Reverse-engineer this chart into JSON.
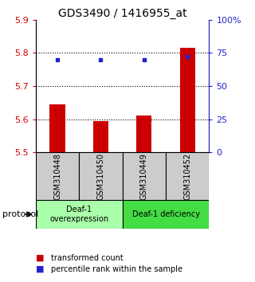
{
  "title": "GDS3490 / 1416955_at",
  "samples": [
    "GSM310448",
    "GSM310450",
    "GSM310449",
    "GSM310452"
  ],
  "bar_values": [
    5.645,
    5.595,
    5.61,
    5.815
  ],
  "bar_base": 5.5,
  "dot_percentiles": [
    70,
    70,
    70,
    72
  ],
  "ylim": [
    5.5,
    5.9
  ],
  "yticks_left": [
    5.5,
    5.6,
    5.7,
    5.8,
    5.9
  ],
  "yticks_right": [
    0,
    25,
    50,
    75,
    100
  ],
  "ytick_labels_left": [
    "5.5",
    "5.6",
    "5.7",
    "5.8",
    "5.9"
  ],
  "ytick_labels_right": [
    "0",
    "25",
    "50",
    "75",
    "100%"
  ],
  "bar_color": "#cc0000",
  "dot_color": "#2222cc",
  "groups": [
    {
      "label": "Deaf-1\noverexpression",
      "samples": [
        0,
        1
      ],
      "color": "#aaffaa"
    },
    {
      "label": "Deaf-1 deficiency",
      "samples": [
        2,
        3
      ],
      "color": "#44dd44"
    }
  ],
  "protocol_label": "protocol",
  "legend_bar_label": "transformed count",
  "legend_dot_label": "percentile rank within the sample",
  "left_tick_color": "#cc0000",
  "right_tick_color": "#2222cc",
  "bar_width": 0.35,
  "sample_bg_color": "#cccccc",
  "sample_border_color": "#000000",
  "grid_lines": [
    5.6,
    5.7,
    5.8
  ]
}
